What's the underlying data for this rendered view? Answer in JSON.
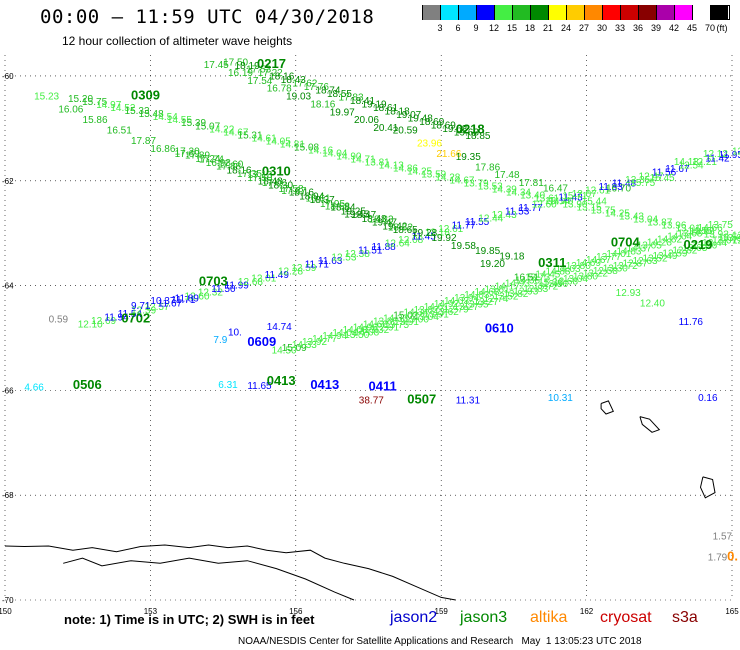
{
  "header": {
    "title": "00:00 – 11:59 UTC 04/30/2018",
    "subtitle": "12 hour collection of altimeter wave heights"
  },
  "scale": {
    "unit": "(ft)",
    "labels": [
      "3",
      "6",
      "9",
      "12",
      "15",
      "18",
      "21",
      "24",
      "27",
      "30",
      "33",
      "36",
      "39",
      "42",
      "45",
      "70"
    ],
    "colors": [
      "#808080",
      "#00e5ff",
      "#00aaff",
      "#0000ff",
      "#44ee44",
      "#22bb22",
      "#008800",
      "#ffff00",
      "#ffcc00",
      "#ff8800",
      "#ff0000",
      "#cc0000",
      "#880000",
      "#aa00aa",
      "#ff00ff",
      "#ffffff",
      "#000000"
    ]
  },
  "axes": {
    "x_ticks": [
      "150",
      "153",
      "156",
      "159",
      "162",
      "165"
    ],
    "y_ticks": [
      "-60",
      "-62",
      "-64",
      "-66",
      "-68",
      "-70"
    ]
  },
  "map": {
    "lon_range": [
      150,
      165
    ],
    "lat_range": [
      -70,
      -59.6
    ],
    "coastline": [
      [
        150,
        -68.97
      ],
      [
        150.4,
        -68.98
      ],
      [
        150.9,
        -68.97
      ],
      [
        151.4,
        -69.05
      ],
      [
        151.8,
        -69.0
      ],
      [
        152.3,
        -69.08
      ],
      [
        152.8,
        -68.98
      ],
      [
        153.3,
        -68.95
      ],
      [
        153.8,
        -69.0
      ],
      [
        154.2,
        -68.95
      ],
      [
        154.6,
        -69.0
      ],
      [
        155.0,
        -68.97
      ],
      [
        155.4,
        -69.05
      ],
      [
        155.8,
        -69.1
      ],
      [
        156.3,
        -69.05
      ],
      [
        156.6,
        -69.2
      ],
      [
        157.0,
        -69.3
      ],
      [
        157.5,
        -69.4
      ],
      [
        158.0,
        -69.55
      ],
      [
        158.5,
        -69.75
      ],
      [
        159.0,
        -69.95
      ],
      [
        159.3,
        -70.0
      ]
    ],
    "inner_coast": [
      [
        151.2,
        -69.3
      ],
      [
        151.6,
        -69.2
      ],
      [
        152.0,
        -69.35
      ],
      [
        152.6,
        -69.25
      ],
      [
        153.2,
        -69.3
      ],
      [
        153.8,
        -69.2
      ],
      [
        154.4,
        -69.3
      ],
      [
        155.0,
        -69.25
      ],
      [
        155.6,
        -69.4
      ],
      [
        156.2,
        -69.6
      ],
      [
        156.8,
        -69.85
      ],
      [
        157.2,
        -70.0
      ]
    ],
    "islands": [
      [
        [
          162.3,
          -66.25
        ],
        [
          162.45,
          -66.2
        ],
        [
          162.55,
          -66.4
        ],
        [
          162.4,
          -66.45
        ],
        [
          162.3,
          -66.35
        ],
        [
          162.3,
          -66.25
        ]
      ],
      [
        [
          163.1,
          -66.5
        ],
        [
          163.3,
          -66.55
        ],
        [
          163.5,
          -66.75
        ],
        [
          163.35,
          -66.8
        ],
        [
          163.15,
          -66.65
        ],
        [
          163.1,
          -66.5
        ]
      ],
      [
        [
          164.4,
          -67.65
        ],
        [
          164.6,
          -67.7
        ],
        [
          164.65,
          -67.95
        ],
        [
          164.45,
          -68.05
        ],
        [
          164.35,
          -67.85
        ],
        [
          164.4,
          -67.65
        ]
      ]
    ]
  },
  "tracks": [
    {
      "p0": [
        151.3,
        -60.5
      ],
      "p1": [
        165.0,
        -63.2
      ],
      "v0": 15.2,
      "v1": 13.3,
      "n": 48
    },
    {
      "p0": [
        151.5,
        -64.8
      ],
      "p1": [
        165.0,
        -61.5
      ],
      "v0": 12.1,
      "v1": 12.0,
      "n": 50
    },
    {
      "p0": [
        157.0,
        -65.0
      ],
      "p1": [
        165.0,
        -63.1
      ],
      "v0": 13.5,
      "v1": 13.0,
      "n": 40
    },
    {
      "p0": [
        155.5,
        -65.3
      ],
      "p1": [
        164.5,
        -62.9
      ],
      "v0": 14.5,
      "v1": 14.2,
      "n": 44
    },
    {
      "p0": [
        154.5,
        -59.8
      ],
      "p1": [
        159.5,
        -61.2
      ],
      "v0": 17.5,
      "v1": 19.4,
      "n": 22
    },
    {
      "p0": [
        153.5,
        -61.5
      ],
      "p1": [
        158.0,
        -63.0
      ],
      "v0": 17.2,
      "v1": 19.2,
      "n": 22
    }
  ],
  "chart_data": {
    "type": "scatter",
    "title": "00:00 – 11:59 UTC 04/30/2018",
    "subtitle": "12 hour collection of altimeter wave heights",
    "x_ticks": [
      150,
      153,
      156,
      159,
      162,
      165
    ],
    "y_ticks": [
      -60,
      -62,
      -64,
      -66,
      -68,
      -70
    ],
    "points": [
      {
        "lon": 152.6,
        "lat": -60.45,
        "text": "0309",
        "color": "#008800",
        "bold": true
      },
      {
        "lon": 150.6,
        "lat": -60.45,
        "text": "15.23",
        "color": "#44ee44"
      },
      {
        "lon": 151.1,
        "lat": -60.7,
        "text": "16.06",
        "color": "#22bb22"
      },
      {
        "lon": 151.6,
        "lat": -60.9,
        "text": "15.86",
        "color": "#22bb22"
      },
      {
        "lon": 152.1,
        "lat": -61.1,
        "text": "16.51",
        "color": "#22bb22"
      },
      {
        "lon": 152.6,
        "lat": -61.3,
        "text": "17.87",
        "color": "#22bb22"
      },
      {
        "lon": 153.0,
        "lat": -61.45,
        "text": "16.86",
        "color": "#22bb22"
      },
      {
        "lon": 153.5,
        "lat": -61.55,
        "text": "17.69",
        "color": "#22bb22"
      },
      {
        "lon": 154.0,
        "lat": -61.65,
        "text": "17.74",
        "color": "#22bb22"
      },
      {
        "lon": 154.4,
        "lat": -61.75,
        "text": "17.60",
        "color": "#22bb22"
      },
      {
        "lon": 155.2,
        "lat": -59.85,
        "text": "0217",
        "color": "#008800",
        "bold": true
      },
      {
        "lon": 154.1,
        "lat": -59.85,
        "text": "17.45",
        "color": "#22bb22"
      },
      {
        "lon": 154.6,
        "lat": -60.0,
        "text": "16.19",
        "color": "#22bb22"
      },
      {
        "lon": 155.0,
        "lat": -60.15,
        "text": "17.54",
        "color": "#22bb22"
      },
      {
        "lon": 155.4,
        "lat": -60.3,
        "text": "16.78",
        "color": "#22bb22"
      },
      {
        "lon": 155.8,
        "lat": -60.45,
        "text": "19.03",
        "color": "#008800"
      },
      {
        "lon": 156.3,
        "lat": -60.6,
        "text": "18.16",
        "color": "#22bb22"
      },
      {
        "lon": 156.7,
        "lat": -60.75,
        "text": "19.97",
        "color": "#008800"
      },
      {
        "lon": 157.2,
        "lat": -60.9,
        "text": "20.06",
        "color": "#008800"
      },
      {
        "lon": 157.6,
        "lat": -61.05,
        "text": "20.41",
        "color": "#008800"
      },
      {
        "lon": 158.0,
        "lat": -61.1,
        "text": "20.59",
        "color": "#008800"
      },
      {
        "lon": 159.3,
        "lat": -61.1,
        "text": "0218",
        "color": "#008800",
        "bold": true
      },
      {
        "lon": 158.5,
        "lat": -61.35,
        "text": "23.96",
        "color": "#ffff00"
      },
      {
        "lon": 158.9,
        "lat": -61.55,
        "text": "21.66",
        "color": "#ffcc00"
      },
      {
        "lon": 159.3,
        "lat": -61.6,
        "text": "19.35",
        "color": "#008800"
      },
      {
        "lon": 159.7,
        "lat": -61.8,
        "text": "17.86",
        "color": "#22bb22"
      },
      {
        "lon": 160.1,
        "lat": -61.95,
        "text": "17.48",
        "color": "#22bb22"
      },
      {
        "lon": 160.6,
        "lat": -62.1,
        "text": "17.81",
        "color": "#22bb22"
      },
      {
        "lon": 161.1,
        "lat": -62.2,
        "text": "16.47",
        "color": "#22bb22"
      },
      {
        "lon": 161.5,
        "lat": -62.35,
        "text": "15.71",
        "color": "#44ee44"
      },
      {
        "lon": 161.9,
        "lat": -62.45,
        "text": "15.44",
        "color": "#44ee44"
      },
      {
        "lon": 155.3,
        "lat": -61.9,
        "text": "0310",
        "color": "#008800",
        "bold": true
      },
      {
        "lon": 155.0,
        "lat": -61.95,
        "text": "17.13",
        "color": "#22bb22"
      },
      {
        "lon": 155.3,
        "lat": -62.1,
        "text": "17.06",
        "color": "#22bb22"
      },
      {
        "lon": 155.7,
        "lat": -62.25,
        "text": "17.37",
        "color": "#22bb22"
      },
      {
        "lon": 156.2,
        "lat": -62.4,
        "text": "16.61",
        "color": "#22bb22"
      },
      {
        "lon": 156.6,
        "lat": -62.55,
        "text": "18.68",
        "color": "#22bb22"
      },
      {
        "lon": 157.0,
        "lat": -62.7,
        "text": "19.45",
        "color": "#008800"
      },
      {
        "lon": 157.5,
        "lat": -62.8,
        "text": "18.83",
        "color": "#22bb22"
      },
      {
        "lon": 157.9,
        "lat": -62.95,
        "text": "18.82",
        "color": "#22bb22"
      },
      {
        "lon": 158.4,
        "lat": -63.05,
        "text": "19.28",
        "color": "#008800"
      },
      {
        "lon": 158.8,
        "lat": -63.15,
        "text": "19.92",
        "color": "#008800"
      },
      {
        "lon": 159.2,
        "lat": -63.3,
        "text": "19.58",
        "color": "#008800"
      },
      {
        "lon": 159.7,
        "lat": -63.4,
        "text": "19.85",
        "color": "#008800"
      },
      {
        "lon": 160.2,
        "lat": -63.5,
        "text": "19.18",
        "color": "#008800"
      },
      {
        "lon": 159.8,
        "lat": -63.65,
        "text": "19.20",
        "color": "#008800"
      },
      {
        "lon": 154.0,
        "lat": -64.0,
        "text": "0703",
        "color": "#008800",
        "bold": true
      },
      {
        "lon": 152.4,
        "lat": -64.7,
        "text": "0702",
        "color": "#008800",
        "bold": true
      },
      {
        "lon": 150.9,
        "lat": -64.7,
        "text": "0.59",
        "color": "#808080"
      },
      {
        "lon": 152.6,
        "lat": -64.45,
        "text": "9.71",
        "color": "#0000ff"
      },
      {
        "lon": 153.0,
        "lat": -64.35,
        "text": "10.37",
        "color": "#0000ff"
      },
      {
        "lon": 153.5,
        "lat": -64.3,
        "text": "11.89",
        "color": "#0000ff"
      },
      {
        "lon": 155.0,
        "lat": -65.15,
        "text": "0609",
        "color": "#0000ff",
        "bold": true
      },
      {
        "lon": 154.3,
        "lat": -65.1,
        "text": "7.9",
        "color": "#00aaff"
      },
      {
        "lon": 154.6,
        "lat": -64.95,
        "text": "10.",
        "color": "#0000ff"
      },
      {
        "lon": 155.4,
        "lat": -64.85,
        "text": "14.74",
        "color": "#0000ff"
      },
      {
        "lon": 161.0,
        "lat": -63.65,
        "text": "0311",
        "color": "#008800",
        "bold": true
      },
      {
        "lon": 160.5,
        "lat": -63.9,
        "text": "16.51",
        "color": "#22bb22"
      },
      {
        "lon": 161.0,
        "lat": -64.0,
        "text": "15.36",
        "color": "#44ee44"
      },
      {
        "lon": 162.5,
        "lat": -63.25,
        "text": "0704",
        "color": "#008800",
        "bold": true
      },
      {
        "lon": 164.0,
        "lat": -63.3,
        "text": "0219",
        "color": "#008800",
        "bold": true
      },
      {
        "lon": 163.3,
        "lat": -62.0,
        "text": "15.45",
        "color": "#44ee44"
      },
      {
        "lon": 162.4,
        "lat": -62.2,
        "text": "16.70",
        "color": "#22bb22"
      },
      {
        "lon": 162.9,
        "lat": -62.1,
        "text": "15.75",
        "color": "#44ee44"
      },
      {
        "lon": 163.8,
        "lat": -61.7,
        "text": "14.13",
        "color": "#44ee44"
      },
      {
        "lon": 164.4,
        "lat": -61.55,
        "text": "12.12",
        "color": "#44ee44"
      },
      {
        "lon": 159.9,
        "lat": -64.9,
        "text": "0610",
        "color": "#0000ff",
        "bold": true
      },
      {
        "lon": 163.9,
        "lat": -64.75,
        "text": "11.76",
        "color": "#0000ff"
      },
      {
        "lon": 162.6,
        "lat": -64.2,
        "text": "12.93",
        "color": "#44ee44"
      },
      {
        "lon": 163.1,
        "lat": -64.4,
        "text": "12.40",
        "color": "#44ee44"
      },
      {
        "lon": 150.4,
        "lat": -66.0,
        "text": "4.66",
        "color": "#00e5ff"
      },
      {
        "lon": 151.4,
        "lat": -65.97,
        "text": "0506",
        "color": "#008800",
        "bold": true
      },
      {
        "lon": 154.4,
        "lat": -65.95,
        "text": "6.31",
        "color": "#00e5ff"
      },
      {
        "lon": 155.0,
        "lat": -65.97,
        "text": "11.65",
        "color": "#0000ff"
      },
      {
        "lon": 155.4,
        "lat": -65.9,
        "text": "0413",
        "color": "#008800",
        "bold": true
      },
      {
        "lon": 156.3,
        "lat": -65.97,
        "text": "0413",
        "color": "#0000ff",
        "bold": true
      },
      {
        "lon": 157.5,
        "lat": -66.0,
        "text": "0411",
        "color": "#0000ff",
        "bold": true
      },
      {
        "lon": 157.3,
        "lat": -66.25,
        "text": "38.77",
        "color": "#880000"
      },
      {
        "lon": 158.3,
        "lat": -66.25,
        "text": "0507",
        "color": "#008800",
        "bold": true
      },
      {
        "lon": 159.3,
        "lat": -66.25,
        "text": "11.31",
        "color": "#0000ff"
      },
      {
        "lon": 161.2,
        "lat": -66.2,
        "text": "10.31",
        "color": "#00aaff"
      },
      {
        "lon": 164.3,
        "lat": -66.2,
        "text": "0.16",
        "color": "#0000ff"
      },
      {
        "lon": 164.5,
        "lat": -69.25,
        "text": "1.79",
        "color": "#808080"
      },
      {
        "lon": 164.6,
        "lat": -68.85,
        "text": "1.57",
        "color": "#808080"
      },
      {
        "lon": 164.9,
        "lat": -69.25,
        "text": "0.",
        "color": "#ff8800",
        "bold": true
      }
    ]
  },
  "footer": {
    "note": "note: 1) Time is in UTC; 2) SWH is in feet",
    "satellites": [
      {
        "name": "jason2",
        "color": "#0000cc"
      },
      {
        "name": "jason3",
        "color": "#008800"
      },
      {
        "name": "altika",
        "color": "#ff8800"
      },
      {
        "name": "cryosat",
        "color": "#cc0000"
      },
      {
        "name": "s3a",
        "color": "#880000"
      }
    ],
    "credit": "NOAA/NESDIS Center for Satellite Applications and Research   May  1 13:05:23 UTC 2018"
  }
}
